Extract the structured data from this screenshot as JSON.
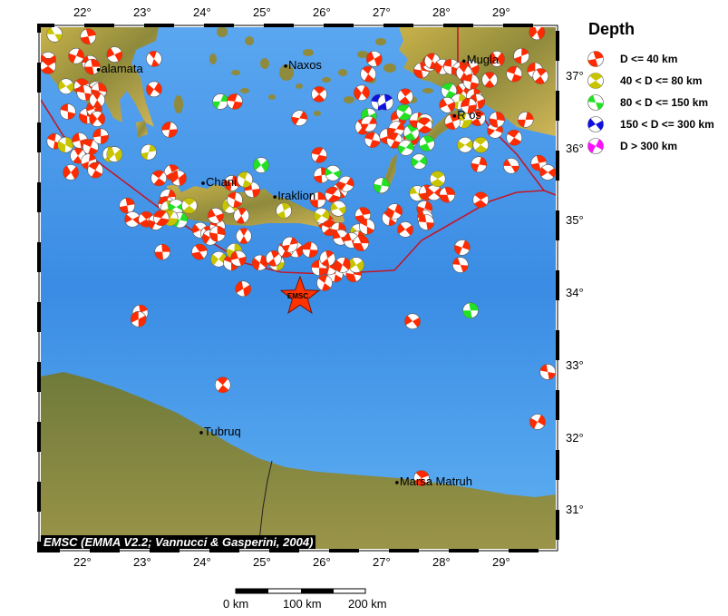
{
  "legend": {
    "title": "Depth",
    "items": [
      {
        "label": "D <= 40 km",
        "color": "#ff2a00"
      },
      {
        "label": "40 < D <= 80 km",
        "color": "#c8c400"
      },
      {
        "label": "80 < D <= 150 km",
        "color": "#22e022"
      },
      {
        "label": "150 < D <= 300 km",
        "color": "#1010e0"
      },
      {
        "label": "D > 300 km",
        "color": "#ff10ff"
      }
    ]
  },
  "axes": {
    "lon_labels": [
      "22°",
      "23°",
      "24°",
      "25°",
      "26°",
      "27°",
      "28°",
      "29°"
    ],
    "lon_values": [
      22,
      23,
      24,
      25,
      26,
      27,
      28,
      29
    ],
    "lat_labels": [
      "37°",
      "36°",
      "35°",
      "34°",
      "33°",
      "32°",
      "31°"
    ],
    "lat_values": [
      37,
      36,
      35,
      34,
      33,
      32,
      31
    ],
    "lon_range": [
      21.29,
      29.89
    ],
    "lat_range": [
      30.45,
      37.68
    ]
  },
  "cities": [
    {
      "name": "alamata",
      "lon": 22.25,
      "lat": 37.09
    },
    {
      "name": "Naxos",
      "lon": 25.38,
      "lat": 37.14
    },
    {
      "name": "Chani",
      "lon": 24.0,
      "lat": 35.52
    },
    {
      "name": "Iraklion",
      "lon": 25.2,
      "lat": 35.33
    },
    {
      "name": "Mugla",
      "lon": 28.36,
      "lat": 37.21
    },
    {
      "name": "R   os",
      "lon": 28.2,
      "lat": 36.45
    },
    {
      "name": "Tubruq",
      "lon": 23.97,
      "lat": 32.07
    },
    {
      "name": "Marsa Matruh",
      "lon": 27.24,
      "lat": 31.38
    }
  ],
  "marker": {
    "label": "EMSC",
    "lon": 25.62,
    "lat": 33.95,
    "color": "#ff3300"
  },
  "credit": "EMSC (EMMA V2.2; Vannucci & Gasperini, 2004)",
  "scale_bar": {
    "labels": [
      "0 km",
      "100 km",
      "200 km"
    ]
  },
  "colors": {
    "ocean": "#3d8fe6",
    "land": "#8c8a40",
    "plate_boundary": "#c0182a"
  },
  "events": [
    [
      21.52,
      37.58,
      "y"
    ],
    [
      22.08,
      37.55,
      "r"
    ],
    [
      21.41,
      37.23,
      "r"
    ],
    [
      21.41,
      37.14,
      "r"
    ],
    [
      21.88,
      37.28,
      "r"
    ],
    [
      22.11,
      37.18,
      "r"
    ],
    [
      22.15,
      37.13,
      "r"
    ],
    [
      21.71,
      36.86,
      "y"
    ],
    [
      21.97,
      36.86,
      "r"
    ],
    [
      22.21,
      36.82,
      "r"
    ],
    [
      22.02,
      36.77,
      "r"
    ],
    [
      22.26,
      36.8,
      "r"
    ],
    [
      22.52,
      37.3,
      "r"
    ],
    [
      23.18,
      37.24,
      "r"
    ],
    [
      23.18,
      36.82,
      "r"
    ],
    [
      21.74,
      36.51,
      "r"
    ],
    [
      22.06,
      36.45,
      "r"
    ],
    [
      22.18,
      36.55,
      "r"
    ],
    [
      22.23,
      36.67,
      "r"
    ],
    [
      22.23,
      36.41,
      "r"
    ],
    [
      21.52,
      36.1,
      "r"
    ],
    [
      21.7,
      36.05,
      "y"
    ],
    [
      21.94,
      36.11,
      "r"
    ],
    [
      21.91,
      35.9,
      "r"
    ],
    [
      21.79,
      35.67,
      "r"
    ],
    [
      22.12,
      36.02,
      "r"
    ],
    [
      22.09,
      35.82,
      "r"
    ],
    [
      22.29,
      36.17,
      "r"
    ],
    [
      22.45,
      35.92,
      "y"
    ],
    [
      22.52,
      35.92,
      "y"
    ],
    [
      22.2,
      35.7,
      "r"
    ],
    [
      23.09,
      35.95,
      "y"
    ],
    [
      23.44,
      36.26,
      "r"
    ],
    [
      23.48,
      35.67,
      "r"
    ],
    [
      23.59,
      35.59,
      "r"
    ],
    [
      23.26,
      35.59,
      "r"
    ],
    [
      23.41,
      35.33,
      "r"
    ],
    [
      23.38,
      35.23,
      "r"
    ],
    [
      23.42,
      35.17,
      "y"
    ],
    [
      23.55,
      35.19,
      "g"
    ],
    [
      23.77,
      35.21,
      "y"
    ],
    [
      23.61,
      35.01,
      "g"
    ],
    [
      23.45,
      35.04,
      "y"
    ],
    [
      22.73,
      35.21,
      "r"
    ],
    [
      22.82,
      35.02,
      "r"
    ],
    [
      23.05,
      35.02,
      "r"
    ],
    [
      23.21,
      34.98,
      "r"
    ],
    [
      23.3,
      35.04,
      "r"
    ],
    [
      23.32,
      34.57,
      "r"
    ],
    [
      23.95,
      34.87,
      "r"
    ],
    [
      24.09,
      34.82,
      "r"
    ],
    [
      24.12,
      34.77,
      "r"
    ],
    [
      24.24,
      34.92,
      "r"
    ],
    [
      24.24,
      34.82,
      "r"
    ],
    [
      24.21,
      35.07,
      "r"
    ],
    [
      23.94,
      34.57,
      "r"
    ],
    [
      24.26,
      34.47,
      "y"
    ],
    [
      24.47,
      34.42,
      "r"
    ],
    [
      24.52,
      34.58,
      "y"
    ],
    [
      24.59,
      34.48,
      "r"
    ],
    [
      24.68,
      34.79,
      "r"
    ],
    [
      24.45,
      35.21,
      "y"
    ],
    [
      24.53,
      35.29,
      "r"
    ],
    [
      24.48,
      35.52,
      "r"
    ],
    [
      24.82,
      35.43,
      "r"
    ],
    [
      24.64,
      35.07,
      "r"
    ],
    [
      24.97,
      35.77,
      "g"
    ],
    [
      24.7,
      35.57,
      "y"
    ],
    [
      24.95,
      34.42,
      "r"
    ],
    [
      25.23,
      34.42,
      "y"
    ],
    [
      25.18,
      34.48,
      "r"
    ],
    [
      25.55,
      34.6,
      "r"
    ],
    [
      25.38,
      34.6,
      "r"
    ],
    [
      25.45,
      34.67,
      "r"
    ],
    [
      25.79,
      34.6,
      "r"
    ],
    [
      25.35,
      35.14,
      "y"
    ],
    [
      24.67,
      34.06,
      "r"
    ],
    [
      24.33,
      32.73,
      "r"
    ],
    [
      24.29,
      36.65,
      "g"
    ],
    [
      24.53,
      36.65,
      "r"
    ],
    [
      22.95,
      33.73,
      "r"
    ],
    [
      22.92,
      33.64,
      "r"
    ],
    [
      25.94,
      36.75,
      "r"
    ],
    [
      25.61,
      36.42,
      "r"
    ],
    [
      25.94,
      35.91,
      "r"
    ],
    [
      25.98,
      35.63,
      "r"
    ],
    [
      26.17,
      35.66,
      "g"
    ],
    [
      26.29,
      35.42,
      "r"
    ],
    [
      26.39,
      35.51,
      "r"
    ],
    [
      26.17,
      35.36,
      "r"
    ],
    [
      25.92,
      35.29,
      "r"
    ],
    [
      26.26,
      35.17,
      "y"
    ],
    [
      26.05,
      34.98,
      "r"
    ],
    [
      25.98,
      35.07,
      "y"
    ],
    [
      26.11,
      34.9,
      "r"
    ],
    [
      26.26,
      34.87,
      "r"
    ],
    [
      26.3,
      34.77,
      "r"
    ],
    [
      26.67,
      35.08,
      "r"
    ],
    [
      26.59,
      34.85,
      "y"
    ],
    [
      26.74,
      34.92,
      "r"
    ],
    [
      26.58,
      34.75,
      "r"
    ],
    [
      26.48,
      34.73,
      "r"
    ],
    [
      26.64,
      34.69,
      "r"
    ],
    [
      26.24,
      34.33,
      "r"
    ],
    [
      26.21,
      34.26,
      "r"
    ],
    [
      26.11,
      34.36,
      "r"
    ],
    [
      26.44,
      34.33,
      "r"
    ],
    [
      26.52,
      34.26,
      "r"
    ],
    [
      26.56,
      34.39,
      "y"
    ],
    [
      26.03,
      34.14,
      "r"
    ],
    [
      26.33,
      34.39,
      "r"
    ],
    [
      25.94,
      34.35,
      "r"
    ],
    [
      26.08,
      34.48,
      "r"
    ],
    [
      26.86,
      37.24,
      "r"
    ],
    [
      26.76,
      37.03,
      "r"
    ],
    [
      26.65,
      36.77,
      "r"
    ],
    [
      26.94,
      36.64,
      "b"
    ],
    [
      27.05,
      36.64,
      "b"
    ],
    [
      26.77,
      36.45,
      "g"
    ],
    [
      26.67,
      36.3,
      "r"
    ],
    [
      26.77,
      36.34,
      "r"
    ],
    [
      26.83,
      36.12,
      "r"
    ],
    [
      27.08,
      36.17,
      "r"
    ],
    [
      27.27,
      36.42,
      "r"
    ],
    [
      27.38,
      36.72,
      "r"
    ],
    [
      27.23,
      36.27,
      "r"
    ],
    [
      27.2,
      36.11,
      "r"
    ],
    [
      27.45,
      36.11,
      "y"
    ],
    [
      27.48,
      36.15,
      "r"
    ],
    [
      27.48,
      36.22,
      "g"
    ],
    [
      27.39,
      36.01,
      "g"
    ],
    [
      27.36,
      36.5,
      "g"
    ],
    [
      27.58,
      36.39,
      "r"
    ],
    [
      27.71,
      36.37,
      "y"
    ],
    [
      27.74,
      36.07,
      "g"
    ],
    [
      27.61,
      35.82,
      "g"
    ],
    [
      27.7,
      36.32,
      "r"
    ],
    [
      26.98,
      35.49,
      "g"
    ],
    [
      27.58,
      35.38,
      "y"
    ],
    [
      27.74,
      35.39,
      "r"
    ],
    [
      27.86,
      35.39,
      "r"
    ],
    [
      27.92,
      35.58,
      "y"
    ],
    [
      27.7,
      35.17,
      "r"
    ],
    [
      27.71,
      35.04,
      "r"
    ],
    [
      28.08,
      35.36,
      "r"
    ],
    [
      27.38,
      34.88,
      "r"
    ],
    [
      27.12,
      35.04,
      "r"
    ],
    [
      27.2,
      35.13,
      "r"
    ],
    [
      27.73,
      34.98,
      "r"
    ],
    [
      27.65,
      37.08,
      "r"
    ],
    [
      27.79,
      37.18,
      "r"
    ],
    [
      27.83,
      37.21,
      "r"
    ],
    [
      28.0,
      37.13,
      "r"
    ],
    [
      28.15,
      37.13,
      "r"
    ],
    [
      28.3,
      37.09,
      "r"
    ],
    [
      28.48,
      37.11,
      "r"
    ],
    [
      28.36,
      37.05,
      "r"
    ],
    [
      28.35,
      36.8,
      "r"
    ],
    [
      28.48,
      36.92,
      "r"
    ],
    [
      28.53,
      36.72,
      "r"
    ],
    [
      28.58,
      36.65,
      "r"
    ],
    [
      28.79,
      36.95,
      "r"
    ],
    [
      28.91,
      37.24,
      "r"
    ],
    [
      29.2,
      37.03,
      "r"
    ],
    [
      29.32,
      37.28,
      "r"
    ],
    [
      29.55,
      37.08,
      "r"
    ],
    [
      29.64,
      37.0,
      "r"
    ],
    [
      29.58,
      37.61,
      "r"
    ],
    [
      28.11,
      36.8,
      "g"
    ],
    [
      28.27,
      36.65,
      "y"
    ],
    [
      28.44,
      36.59,
      "r"
    ],
    [
      28.59,
      36.42,
      "r"
    ],
    [
      28.88,
      36.25,
      "r"
    ],
    [
      29.2,
      36.15,
      "r"
    ],
    [
      29.39,
      36.4,
      "r"
    ],
    [
      28.36,
      36.39,
      "y"
    ],
    [
      28.17,
      36.37,
      "r"
    ],
    [
      28.38,
      36.05,
      "y"
    ],
    [
      28.64,
      36.05,
      "y"
    ],
    [
      28.61,
      35.78,
      "r"
    ],
    [
      29.15,
      35.76,
      "r"
    ],
    [
      29.61,
      35.8,
      "r"
    ],
    [
      29.76,
      35.67,
      "r"
    ],
    [
      28.64,
      35.29,
      "r"
    ],
    [
      28.33,
      34.63,
      "r"
    ],
    [
      28.3,
      34.39,
      "r"
    ],
    [
      28.47,
      33.76,
      "g"
    ],
    [
      27.5,
      33.61,
      "r"
    ],
    [
      27.65,
      31.44,
      "r"
    ],
    [
      29.59,
      32.22,
      "r"
    ],
    [
      29.76,
      32.91,
      "r"
    ],
    [
      28.91,
      36.4,
      "r"
    ],
    [
      28.08,
      36.6,
      "r"
    ]
  ]
}
